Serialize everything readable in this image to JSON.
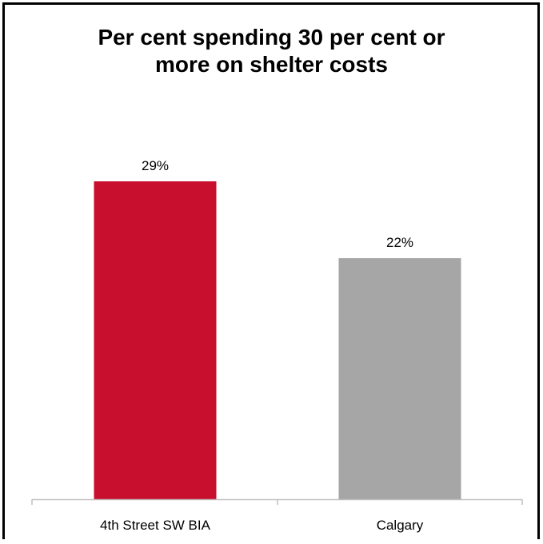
{
  "chart_data": {
    "type": "bar",
    "title_lines": [
      "Per cent spending 30 per cent or",
      "more on shelter costs"
    ],
    "categories": [
      "4th Street SW BIA",
      "Calgary"
    ],
    "values": [
      29,
      22
    ],
    "data_labels": [
      "29%",
      "22%"
    ],
    "colors": [
      "#c8102e",
      "#a6a6a6"
    ],
    "axis_color": "#bfbfbf",
    "grid": false,
    "legend": "none"
  }
}
